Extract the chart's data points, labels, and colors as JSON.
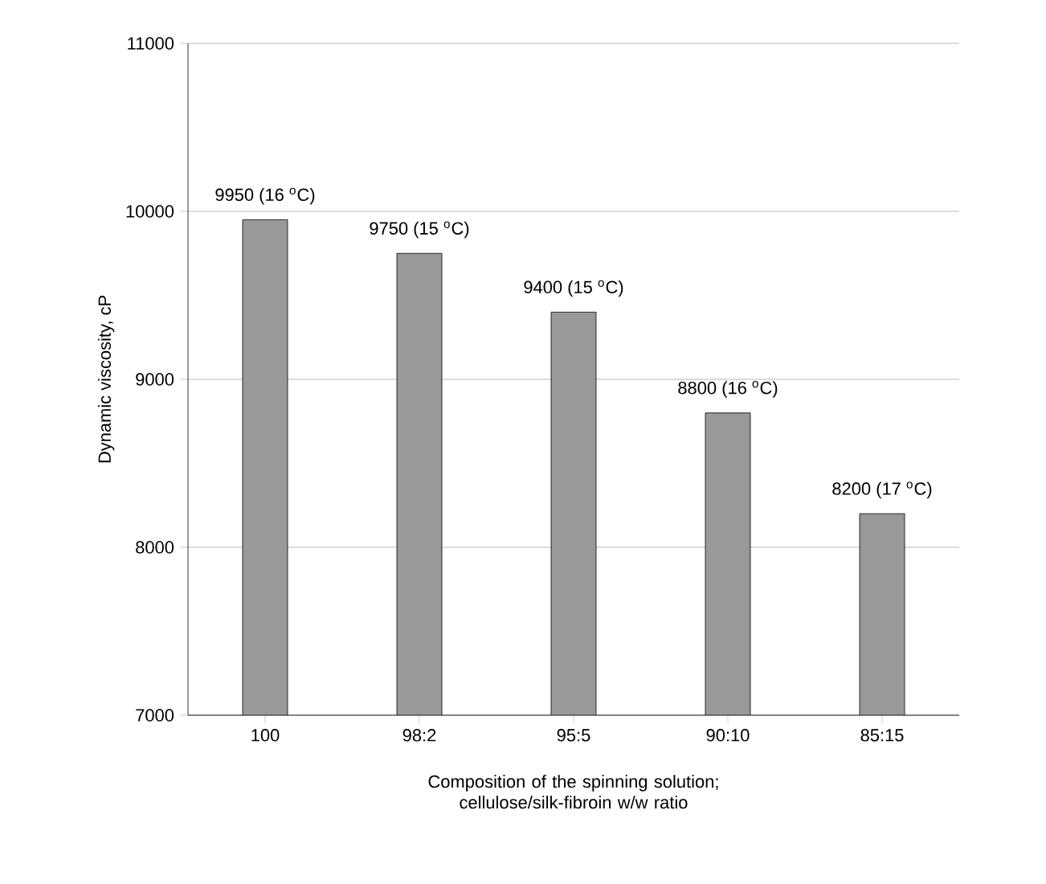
{
  "chart_data": {
    "type": "bar",
    "xlabel": "Composition of the spinning solution; cellulose/silk-fibroin w/w ratio",
    "ylabel": "Dynamic viscosity, cP",
    "categories": [
      "100",
      "98:2",
      "95:5",
      "90:10",
      "85:15"
    ],
    "values": [
      9950,
      9750,
      9400,
      8800,
      8200
    ],
    "value_labels": [
      "9950 (16 $^{o}$C)",
      "9750 (15 $^{o}$C)",
      "9400 (15 $^{o}$C)",
      "8800 (16 $^{o}$C)",
      "8200 (17 $^{o}$C)"
    ],
    "color": "#999999",
    "ylim": [
      7000,
      11000
    ],
    "yticks": [
      7000,
      8000,
      9000,
      10000,
      11000
    ],
    "grid": "y"
  }
}
